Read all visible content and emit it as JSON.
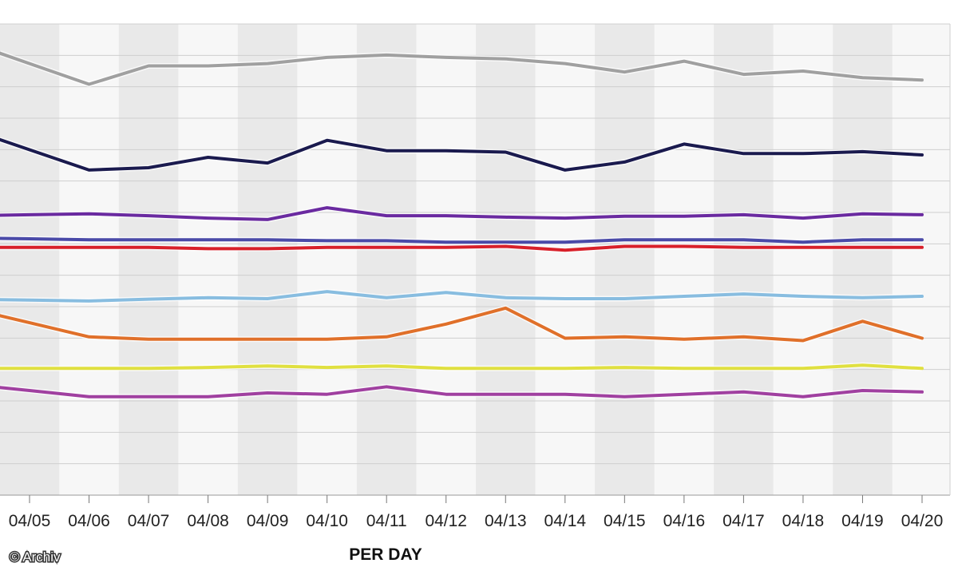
{
  "credit": "© Archiv",
  "chart_data": {
    "type": "line",
    "title": "",
    "xlabel": "PER DAY",
    "ylabel": "",
    "ylim": [
      0,
      100
    ],
    "grid": true,
    "legend": "none",
    "categories": [
      "04/05",
      "04/06",
      "04/07",
      "04/08",
      "04/09",
      "04/10",
      "04/11",
      "04/12",
      "04/13",
      "04/14",
      "04/15",
      "04/16",
      "04/17",
      "04/18",
      "04/19",
      "04/20"
    ],
    "series": [
      {
        "color": "#a0a0a0",
        "values": [
          91.6,
          87.2,
          91.1,
          91.1,
          91.6,
          92.9,
          93.4,
          92.9,
          92.6,
          91.6,
          89.8,
          92.1,
          89.3,
          90.0,
          88.6,
          88.1
        ]
      },
      {
        "color": "#1a1a4e",
        "values": [
          73.3,
          69.0,
          69.5,
          71.7,
          70.5,
          75.3,
          73.1,
          73.1,
          72.8,
          69.0,
          70.7,
          74.5,
          72.5,
          72.5,
          72.9,
          72.2
        ]
      },
      {
        "color": "#6a2aa0",
        "values": [
          59.5,
          59.7,
          59.3,
          58.8,
          58.5,
          61.0,
          59.3,
          59.3,
          59.0,
          58.8,
          59.2,
          59.2,
          59.5,
          58.8,
          59.7,
          59.5
        ]
      },
      {
        "color": "#4a4aa8",
        "values": [
          54.4,
          54.2,
          54.2,
          54.2,
          54.2,
          54.0,
          54.0,
          53.7,
          53.7,
          53.7,
          54.2,
          54.2,
          54.2,
          53.7,
          54.2,
          54.2
        ]
      },
      {
        "color": "#d8202a",
        "values": [
          52.6,
          52.6,
          52.6,
          52.3,
          52.3,
          52.6,
          52.6,
          52.6,
          52.8,
          52.0,
          52.8,
          52.8,
          52.6,
          52.6,
          52.6,
          52.6
        ]
      },
      {
        "color": "#88bde0",
        "values": [
          41.4,
          41.2,
          41.6,
          41.9,
          41.7,
          43.2,
          41.9,
          43.0,
          41.9,
          41.7,
          41.7,
          42.2,
          42.7,
          42.2,
          41.9,
          42.2
        ]
      },
      {
        "color": "#e0702a",
        "values": [
          36.6,
          33.6,
          33.1,
          33.1,
          33.1,
          33.1,
          33.6,
          36.3,
          39.7,
          33.3,
          33.6,
          33.1,
          33.6,
          32.8,
          36.9,
          33.3
        ]
      },
      {
        "color": "#e0e040",
        "values": [
          26.9,
          26.9,
          26.9,
          27.1,
          27.4,
          27.1,
          27.4,
          26.9,
          26.9,
          26.9,
          27.1,
          26.9,
          26.9,
          26.9,
          27.6,
          26.9
        ]
      },
      {
        "color": "#a040a0",
        "values": [
          22.2,
          20.9,
          20.9,
          20.9,
          21.7,
          21.4,
          23.0,
          21.4,
          21.4,
          21.4,
          20.9,
          21.4,
          21.9,
          20.9,
          22.2,
          21.9
        ]
      }
    ]
  }
}
